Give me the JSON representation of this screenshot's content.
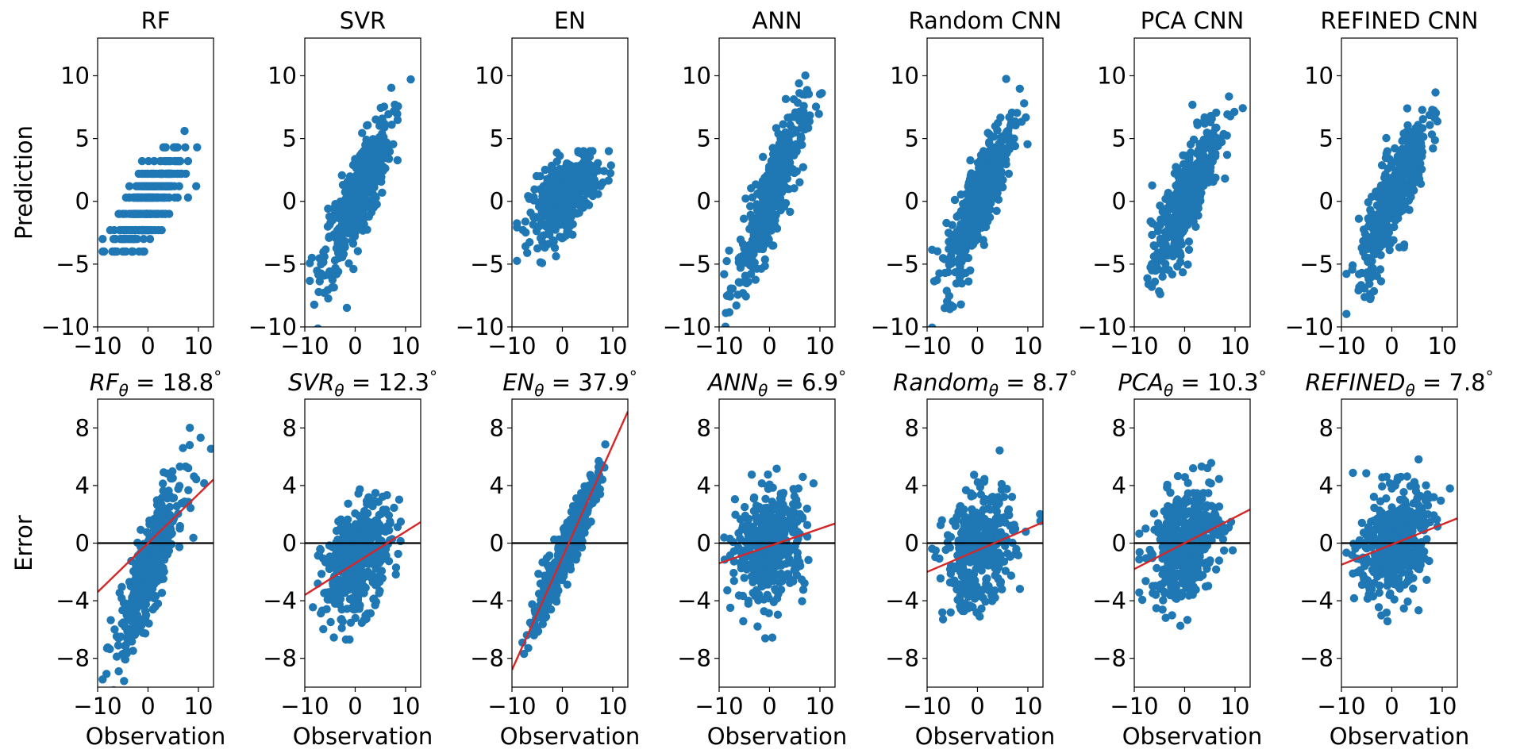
{
  "chart_data": {
    "type": "scatter",
    "layout": "2 rows x 7 columns",
    "models": [
      "RF",
      "SVR",
      "EN",
      "ANN",
      "Random CNN",
      "PCA CNN",
      "REFINED CNN"
    ],
    "rows": [
      {
        "name": "prediction",
        "ylabel": "Prediction",
        "xlabel": "",
        "xlim": [
          -10,
          13
        ],
        "ylim": [
          -10,
          13
        ],
        "xticks": [
          -10,
          0,
          10
        ],
        "yticks": [
          -10,
          -5,
          0,
          5,
          10
        ],
        "panels": [
          {
            "title": "RF",
            "pattern": "rf",
            "color": "#1f77b4"
          },
          {
            "title": "SVR",
            "pattern": "linear",
            "slope": 0.75,
            "intercept": 0,
            "spread": 1.8,
            "color": "#1f77b4"
          },
          {
            "title": "EN",
            "pattern": "en",
            "color": "#1f77b4"
          },
          {
            "title": "ANN",
            "pattern": "linear",
            "slope": 0.9,
            "intercept": 0,
            "spread": 1.8,
            "color": "#1f77b4"
          },
          {
            "title": "Random CNN",
            "pattern": "linear",
            "slope": 0.85,
            "intercept": 0,
            "spread": 1.8,
            "color": "#1f77b4"
          },
          {
            "title": "PCA CNN",
            "pattern": "linear",
            "slope": 0.8,
            "intercept": 0,
            "spread": 1.8,
            "color": "#1f77b4"
          },
          {
            "title": "REFINED CNN",
            "pattern": "linear",
            "slope": 0.82,
            "intercept": 0,
            "spread": 1.8,
            "color": "#1f77b4"
          }
        ]
      },
      {
        "name": "error",
        "ylabel": "Error",
        "xlabel": "Observation",
        "xlim": [
          -10,
          13
        ],
        "ylim": [
          -10,
          10
        ],
        "xticks": [
          -10,
          0,
          10
        ],
        "yticks": [
          -8,
          -4,
          0,
          4,
          8
        ],
        "panels": [
          {
            "title_base": "RF",
            "title_value": "18.8",
            "fit_slope": 0.34,
            "fit_intercept": 0,
            "pattern": "rf-err",
            "color": "#1f77b4",
            "fit_color": "#d62728"
          },
          {
            "title_base": "SVR",
            "title_value": "12.3",
            "fit_slope": 0.22,
            "fit_intercept": -1.4,
            "pattern": "err",
            "spread": 1.8,
            "color": "#1f77b4",
            "fit_color": "#d62728"
          },
          {
            "title_base": "EN",
            "title_value": "37.9",
            "fit_slope": 0.78,
            "fit_intercept": -1.0,
            "pattern": "err",
            "spread": 0.9,
            "color": "#1f77b4",
            "fit_color": "#d62728"
          },
          {
            "title_base": "ANN",
            "title_value": "6.9",
            "fit_slope": 0.12,
            "fit_intercept": -0.2,
            "pattern": "err",
            "spread": 1.9,
            "color": "#1f77b4",
            "fit_color": "#d62728"
          },
          {
            "title_base": "Random",
            "title_value": "8.7",
            "fit_slope": 0.15,
            "fit_intercept": -0.5,
            "pattern": "err",
            "spread": 1.9,
            "color": "#1f77b4",
            "fit_color": "#d62728"
          },
          {
            "title_base": "PCA",
            "title_value": "10.3",
            "fit_slope": 0.18,
            "fit_intercept": 0.0,
            "pattern": "err",
            "spread": 1.9,
            "color": "#1f77b4",
            "fit_color": "#d62728"
          },
          {
            "title_base": "REFINED",
            "title_value": "7.8",
            "fit_slope": 0.14,
            "fit_intercept": -0.1,
            "pattern": "err",
            "spread": 1.9,
            "color": "#1f77b4",
            "fit_color": "#d62728"
          }
        ]
      }
    ],
    "title_subscript": "θ",
    "title_degree": "°",
    "zero_line_color": "#000000"
  }
}
